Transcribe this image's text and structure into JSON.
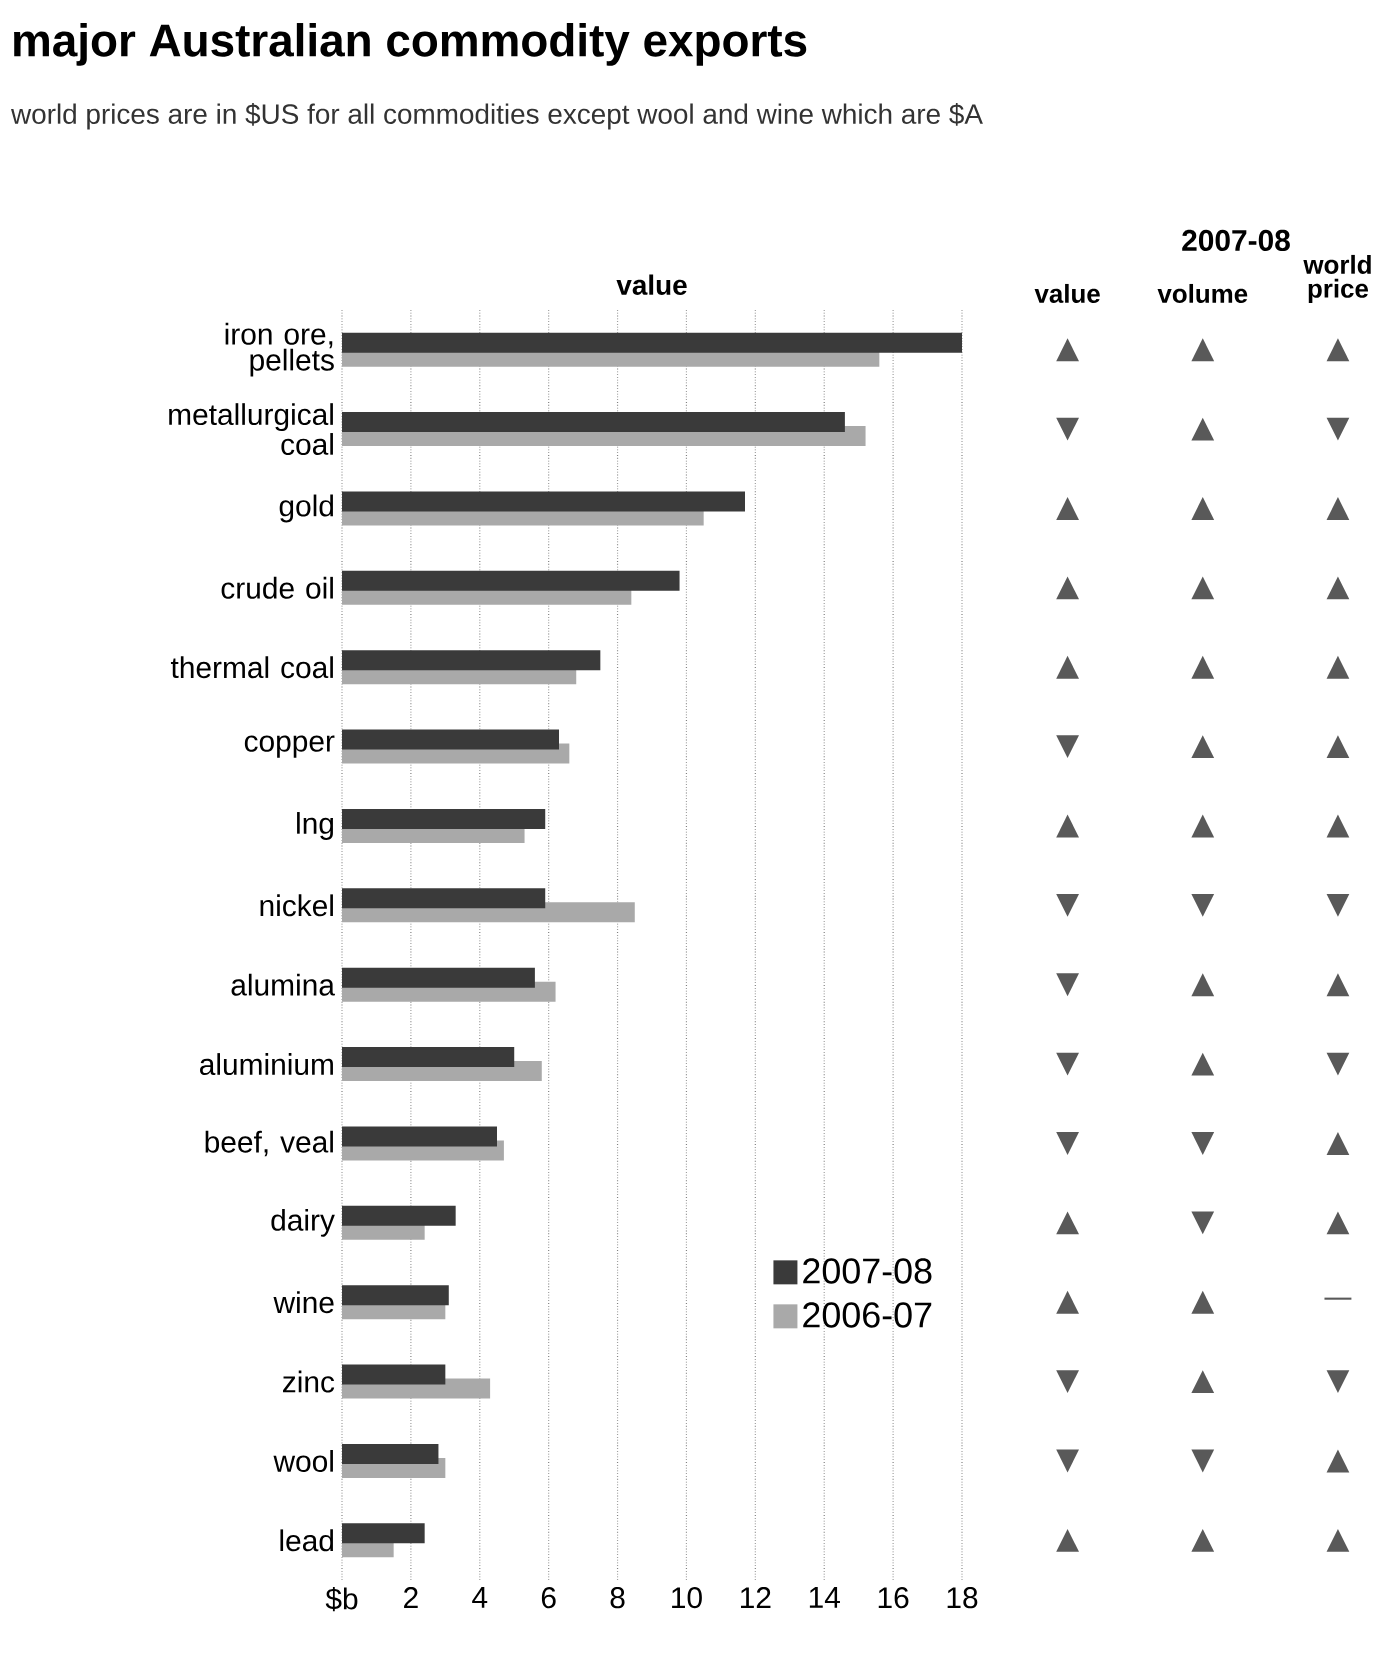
{
  "chart_data": [
    {
      "type": "bar",
      "orientation": "horizontal",
      "title": "major Australian commodity exports",
      "subtitle": "world prices are in $US for all commodities except wool and wine which are $A",
      "xlabel": "value",
      "categories": [
        "iron ore, pellets",
        "metallurgical coal",
        "gold",
        "crude oil",
        "thermal coal",
        "copper",
        "lng",
        "nickel",
        "alumina",
        "aluminium",
        "beef, veal",
        "dairy",
        "wine",
        "zinc",
        "wool",
        "lead"
      ],
      "series": [
        {
          "name": "2007-08",
          "color": "#3a3a3a",
          "values": [
            18.0,
            14.6,
            11.7,
            9.8,
            7.5,
            6.3,
            5.9,
            5.9,
            5.6,
            5.0,
            4.5,
            3.3,
            3.1,
            3.0,
            2.8,
            2.4
          ]
        },
        {
          "name": "2006-07",
          "color": "#a9a9a9",
          "values": [
            15.6,
            15.2,
            10.5,
            8.4,
            6.8,
            6.6,
            5.3,
            8.5,
            6.2,
            5.8,
            4.7,
            2.4,
            3.0,
            4.3,
            3.0,
            1.5
          ]
        }
      ],
      "xlim": [
        0,
        18
      ],
      "xticks": [
        {
          "value": 0,
          "label": "$b"
        },
        2,
        4,
        6,
        8,
        10,
        12,
        14,
        16,
        18
      ],
      "grid": "x",
      "legend": "bottom right"
    },
    {
      "type": "other",
      "title": "2007-08",
      "categories": [
        "value",
        "volume",
        "world price"
      ],
      "y_categories": [
        null,
        null,
        null,
        null,
        null,
        null,
        null,
        null,
        null,
        null,
        null,
        null,
        null,
        null,
        null,
        null
      ],
      "cell_labels": [
        [
          "▲",
          "▲",
          "▲"
        ],
        [
          "▼",
          "▲",
          "▼"
        ],
        [
          "▲",
          "▲",
          "▲"
        ],
        [
          "▲",
          "▲",
          "▲"
        ],
        [
          "▲",
          "▲",
          "▲"
        ],
        [
          "▼",
          "▲",
          "▲"
        ],
        [
          "▲",
          "▲",
          "▲"
        ],
        [
          "▼",
          "▼",
          "▼"
        ],
        [
          "▼",
          "▲",
          "▲"
        ],
        [
          "▼",
          "▲",
          "▼"
        ],
        [
          "▼",
          "▼",
          "▲"
        ],
        [
          "▲",
          "▼",
          "▲"
        ],
        [
          "▲",
          "▲",
          "—"
        ],
        [
          "▼",
          "▲",
          "▼"
        ],
        [
          "▼",
          "▼",
          "▲"
        ],
        [
          "▲",
          "▲",
          "▲"
        ]
      ]
    }
  ]
}
